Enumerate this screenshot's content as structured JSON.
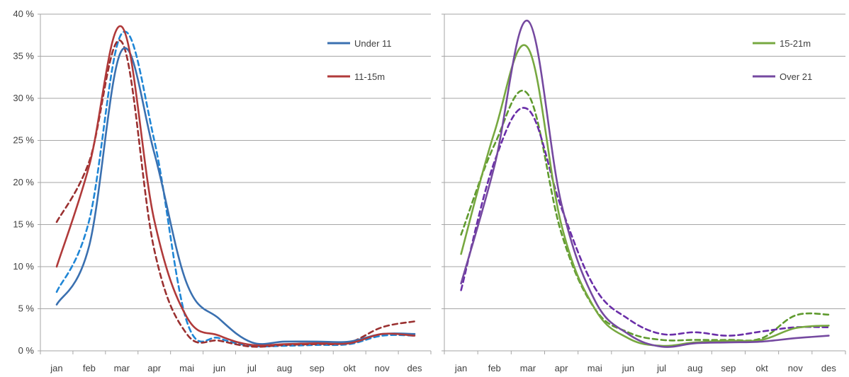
{
  "chart_data": [
    {
      "type": "line",
      "categories": [
        "jan",
        "feb",
        "mar",
        "apr",
        "mai",
        "jun",
        "jul",
        "aug",
        "sep",
        "okt",
        "nov",
        "des"
      ],
      "ylim": [
        0,
        40
      ],
      "yticks": [
        0,
        5,
        10,
        15,
        20,
        25,
        30,
        35,
        40
      ],
      "ytick_labels": [
        "0 %",
        "5 %",
        "10 %",
        "15 %",
        "20 %",
        "25 %",
        "30 %",
        "35 %",
        "40 %"
      ],
      "grid": true,
      "legend_position": "top-right",
      "series": [
        {
          "name": "Under 11",
          "style": "solid",
          "color": "#3a70b0",
          "values": [
            5.5,
            12.5,
            35.7,
            23.5,
            8.0,
            3.8,
            1.0,
            1.1,
            1.1,
            1.1,
            2.0,
            2.0
          ]
        },
        {
          "name": "11-15m",
          "style": "solid",
          "color": "#b03a3a",
          "values": [
            10.0,
            22.0,
            38.5,
            15.5,
            4.0,
            1.8,
            0.7,
            0.8,
            0.9,
            0.9,
            2.0,
            1.8
          ]
        },
        {
          "style": "dashed",
          "color": "#1f86d6",
          "values": [
            7.0,
            15.5,
            37.7,
            25.0,
            3.5,
            1.5,
            0.6,
            0.6,
            0.7,
            0.8,
            1.8,
            1.8
          ]
        },
        {
          "style": "dashed",
          "color": "#9a3030",
          "values": [
            15.3,
            22.5,
            36.7,
            12.0,
            2.0,
            1.2,
            0.5,
            0.7,
            0.8,
            1.0,
            2.8,
            3.5
          ]
        }
      ]
    },
    {
      "type": "line",
      "categories": [
        "jan",
        "feb",
        "mar",
        "apr",
        "mai",
        "jun",
        "jul",
        "aug",
        "sep",
        "okt",
        "nov",
        "des"
      ],
      "ylim": [
        0,
        40
      ],
      "yticks": [
        0,
        5,
        10,
        15,
        20,
        25,
        30,
        35,
        40
      ],
      "grid": true,
      "legend_position": "top-right",
      "series": [
        {
          "name": "15-21m",
          "style": "solid",
          "color": "#77a840",
          "values": [
            11.5,
            26.0,
            36.0,
            15.0,
            5.0,
            1.5,
            0.6,
            1.0,
            1.2,
            1.3,
            2.7,
            3.0
          ]
        },
        {
          "name": "Over 21",
          "style": "solid",
          "color": "#7549a0",
          "values": [
            8.0,
            22.0,
            39.2,
            17.5,
            6.0,
            2.0,
            0.5,
            0.9,
            1.0,
            1.1,
            1.5,
            1.8
          ]
        },
        {
          "style": "dashed",
          "color": "#5f9a2e",
          "values": [
            13.8,
            24.5,
            30.5,
            14.0,
            5.0,
            2.2,
            1.3,
            1.3,
            1.3,
            1.5,
            4.2,
            4.3
          ]
        },
        {
          "style": "dashed",
          "color": "#6a2ea8",
          "values": [
            7.2,
            22.5,
            28.7,
            17.0,
            7.5,
            3.8,
            2.0,
            2.2,
            1.8,
            2.3,
            2.8,
            2.8
          ]
        }
      ]
    }
  ]
}
